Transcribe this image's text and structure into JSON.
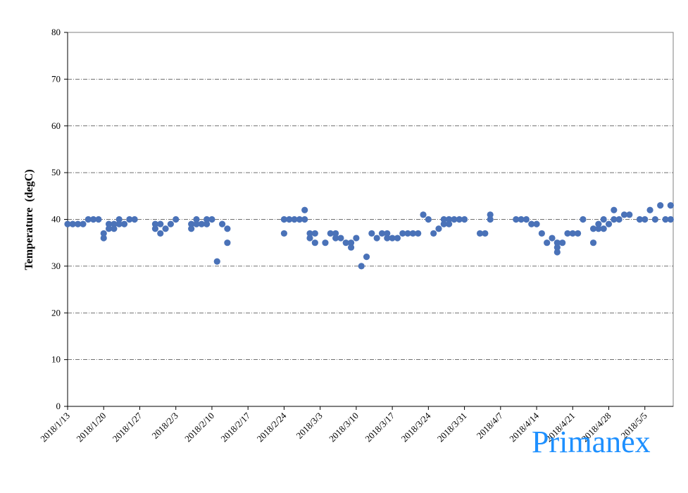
{
  "chart_data": {
    "type": "scatter",
    "title": "",
    "xlabel": "",
    "ylabel": "Temperature  (degC)",
    "ylim": [
      0,
      80
    ],
    "yticks": [
      0,
      10,
      20,
      30,
      40,
      50,
      60,
      70,
      80
    ],
    "xlim": [
      "2018/1/13",
      "2018/5/9"
    ],
    "xticks": [
      "2018/1/13",
      "2018/1/20",
      "2018/1/27",
      "2018/2/3",
      "2018/2/10",
      "2018/2/17",
      "2018/2/24",
      "2018/3/3",
      "2018/3/10",
      "2018/3/17",
      "2018/3/24",
      "2018/3/31",
      "2018/4/7",
      "2018/4/14",
      "2018/4/21",
      "2018/4/28",
      "2018/5/5"
    ],
    "grid": "horizontal dash-dot",
    "marker_color": "#4a72b8",
    "points": [
      [
        "2018/1/13",
        39
      ],
      [
        "2018/1/14",
        39
      ],
      [
        "2018/1/15",
        39
      ],
      [
        "2018/1/16",
        39
      ],
      [
        "2018/1/17",
        40
      ],
      [
        "2018/1/18",
        40
      ],
      [
        "2018/1/19",
        40
      ],
      [
        "2018/1/20",
        37
      ],
      [
        "2018/1/20",
        36
      ],
      [
        "2018/1/21",
        39
      ],
      [
        "2018/1/21",
        38
      ],
      [
        "2018/1/22",
        39
      ],
      [
        "2018/1/22",
        38
      ],
      [
        "2018/1/23",
        40
      ],
      [
        "2018/1/23",
        39
      ],
      [
        "2018/1/24",
        39
      ],
      [
        "2018/1/25",
        40
      ],
      [
        "2018/1/26",
        40
      ],
      [
        "2018/1/30",
        39
      ],
      [
        "2018/1/30",
        38
      ],
      [
        "2018/1/31",
        39
      ],
      [
        "2018/1/31",
        37
      ],
      [
        "2018/2/1",
        38
      ],
      [
        "2018/2/2",
        39
      ],
      [
        "2018/2/3",
        40
      ],
      [
        "2018/2/6",
        39
      ],
      [
        "2018/2/6",
        38
      ],
      [
        "2018/2/7",
        40
      ],
      [
        "2018/2/7",
        39
      ],
      [
        "2018/2/8",
        39
      ],
      [
        "2018/2/9",
        40
      ],
      [
        "2018/2/9",
        39
      ],
      [
        "2018/2/10",
        40
      ],
      [
        "2018/2/11",
        31
      ],
      [
        "2018/2/12",
        39
      ],
      [
        "2018/2/13",
        38
      ],
      [
        "2018/2/13",
        35
      ],
      [
        "2018/2/24",
        40
      ],
      [
        "2018/2/24",
        37
      ],
      [
        "2018/2/25",
        40
      ],
      [
        "2018/2/26",
        40
      ],
      [
        "2018/2/27",
        40
      ],
      [
        "2018/2/28",
        42
      ],
      [
        "2018/2/28",
        40
      ],
      [
        "2018/3/1",
        37
      ],
      [
        "2018/3/1",
        36
      ],
      [
        "2018/3/2",
        37
      ],
      [
        "2018/3/2",
        35
      ],
      [
        "2018/3/4",
        35
      ],
      [
        "2018/3/5",
        37
      ],
      [
        "2018/3/6",
        37
      ],
      [
        "2018/3/6",
        36
      ],
      [
        "2018/3/7",
        36
      ],
      [
        "2018/3/8",
        35
      ],
      [
        "2018/3/9",
        35
      ],
      [
        "2018/3/9",
        34
      ],
      [
        "2018/3/10",
        36
      ],
      [
        "2018/3/11",
        30
      ],
      [
        "2018/3/12",
        32
      ],
      [
        "2018/3/13",
        37
      ],
      [
        "2018/3/14",
        36
      ],
      [
        "2018/3/15",
        37
      ],
      [
        "2018/3/16",
        37
      ],
      [
        "2018/3/16",
        36
      ],
      [
        "2018/3/17",
        36
      ],
      [
        "2018/3/18",
        36
      ],
      [
        "2018/3/19",
        37
      ],
      [
        "2018/3/20",
        37
      ],
      [
        "2018/3/21",
        37
      ],
      [
        "2018/3/22",
        37
      ],
      [
        "2018/3/23",
        41
      ],
      [
        "2018/3/24",
        40
      ],
      [
        "2018/3/25",
        37
      ],
      [
        "2018/3/26",
        38
      ],
      [
        "2018/3/27",
        40
      ],
      [
        "2018/3/27",
        39
      ],
      [
        "2018/3/28",
        40
      ],
      [
        "2018/3/28",
        39
      ],
      [
        "2018/3/29",
        40
      ],
      [
        "2018/3/30",
        40
      ],
      [
        "2018/3/31",
        40
      ],
      [
        "2018/4/3",
        37
      ],
      [
        "2018/4/4",
        37
      ],
      [
        "2018/4/5",
        41
      ],
      [
        "2018/4/5",
        40
      ],
      [
        "2018/4/10",
        40
      ],
      [
        "2018/4/11",
        40
      ],
      [
        "2018/4/12",
        40
      ],
      [
        "2018/4/13",
        39
      ],
      [
        "2018/4/14",
        39
      ],
      [
        "2018/4/15",
        37
      ],
      [
        "2018/4/16",
        35
      ],
      [
        "2018/4/17",
        36
      ],
      [
        "2018/4/18",
        35
      ],
      [
        "2018/4/18",
        34
      ],
      [
        "2018/4/18",
        33
      ],
      [
        "2018/4/19",
        35
      ],
      [
        "2018/4/20",
        37
      ],
      [
        "2018/4/21",
        37
      ],
      [
        "2018/4/22",
        37
      ],
      [
        "2018/4/23",
        40
      ],
      [
        "2018/4/25",
        38
      ],
      [
        "2018/4/25",
        35
      ],
      [
        "2018/4/26",
        39
      ],
      [
        "2018/4/26",
        38
      ],
      [
        "2018/4/27",
        40
      ],
      [
        "2018/4/27",
        38
      ],
      [
        "2018/4/28",
        39
      ],
      [
        "2018/4/29",
        42
      ],
      [
        "2018/4/29",
        40
      ],
      [
        "2018/4/30",
        40
      ],
      [
        "2018/5/1",
        41
      ],
      [
        "2018/5/2",
        41
      ],
      [
        "2018/5/4",
        40
      ],
      [
        "2018/5/5",
        40
      ],
      [
        "2018/5/6",
        42
      ],
      [
        "2018/5/7",
        40
      ],
      [
        "2018/5/8",
        43
      ],
      [
        "2018/5/9",
        40
      ],
      [
        "2018/5/10",
        43
      ],
      [
        "2018/5/10",
        40
      ]
    ]
  },
  "watermark": {
    "text": "Primanex",
    "color": "#1e90ff"
  }
}
